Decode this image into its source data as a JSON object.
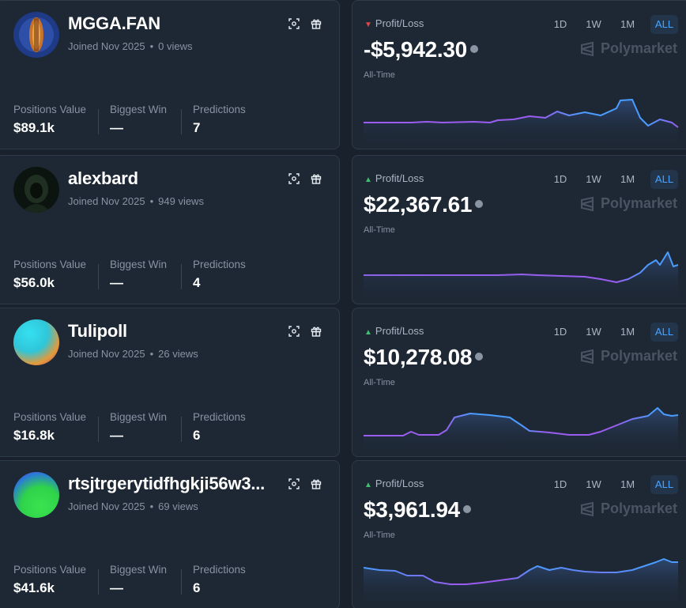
{
  "traders": [
    {
      "username": "MGGA.FAN",
      "joined": "Joined Nov 2025",
      "views": "0 views",
      "stats": [
        {
          "label": "Positions Value",
          "value": "$89.1k"
        },
        {
          "label": "Biggest Win",
          "value": "—"
        },
        {
          "label": "Predictions",
          "value": "7"
        }
      ],
      "pnl": {
        "label": "Profit/Loss",
        "direction": "down",
        "value": "-$5,942.30",
        "period": "All-Time",
        "tabs": [
          "1D",
          "1W",
          "1M",
          "ALL"
        ],
        "active_tab": "ALL",
        "brand": "Polymarket"
      }
    },
    {
      "username": "alexbard",
      "joined": "Joined Nov 2025",
      "views": "949 views",
      "stats": [
        {
          "label": "Positions Value",
          "value": "$56.0k"
        },
        {
          "label": "Biggest Win",
          "value": "—"
        },
        {
          "label": "Predictions",
          "value": "4"
        }
      ],
      "pnl": {
        "label": "Profit/Loss",
        "direction": "up",
        "value": "$22,367.61",
        "period": "All-Time",
        "tabs": [
          "1D",
          "1W",
          "1M",
          "ALL"
        ],
        "active_tab": "ALL",
        "brand": "Polymarket"
      }
    },
    {
      "username": "Tulipoll",
      "joined": "Joined Nov 2025",
      "views": "26 views",
      "stats": [
        {
          "label": "Positions Value",
          "value": "$16.8k"
        },
        {
          "label": "Biggest Win",
          "value": "—"
        },
        {
          "label": "Predictions",
          "value": "6"
        }
      ],
      "pnl": {
        "label": "Profit/Loss",
        "direction": "up",
        "value": "$10,278.08",
        "period": "All-Time",
        "tabs": [
          "1D",
          "1W",
          "1M",
          "ALL"
        ],
        "active_tab": "ALL",
        "brand": "Polymarket"
      }
    },
    {
      "username": "rtsjtrgerytidfhgkji56w3...",
      "joined": "Joined Nov 2025",
      "views": "69 views",
      "stats": [
        {
          "label": "Positions Value",
          "value": "$41.6k"
        },
        {
          "label": "Biggest Win",
          "value": "—"
        },
        {
          "label": "Predictions",
          "value": "6"
        }
      ],
      "pnl": {
        "label": "Profit/Loss",
        "direction": "up",
        "value": "$3,961.94",
        "period": "All-Time",
        "tabs": [
          "1D",
          "1W",
          "1M",
          "ALL"
        ],
        "active_tab": "ALL",
        "brand": "Polymarket"
      }
    }
  ],
  "colors": {
    "positive": "#3fbf6f",
    "negative": "#e04646",
    "accent": "#4aa3ff",
    "line_start": "#9b5cf0",
    "line_end": "#4a9cff"
  }
}
